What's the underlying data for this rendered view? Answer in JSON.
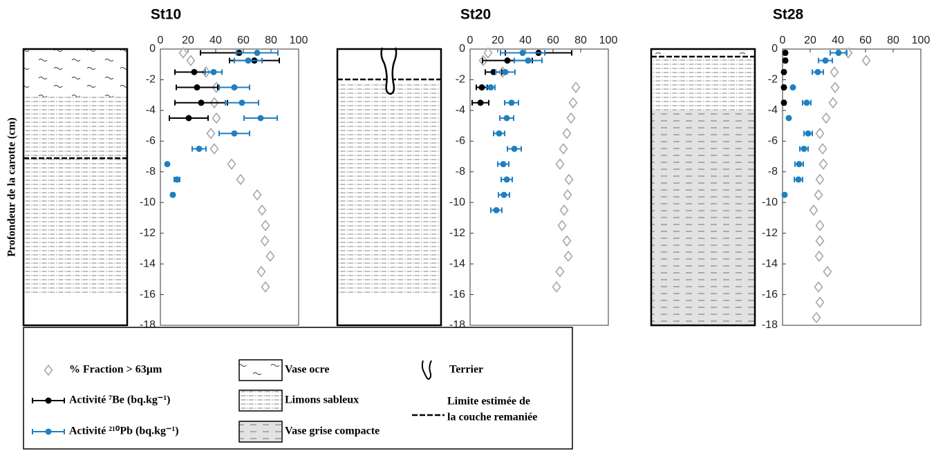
{
  "y_axis_label": "Profondeur de la carotte (cm)",
  "legend": {
    "series": [
      {
        "name": "% Fraction > 63µm",
        "color": "#a6a6a6",
        "marker": "diamond"
      },
      {
        "name": "Activité ⁷Be (bq.kg⁻¹)",
        "color": "#000000",
        "marker": "circle"
      },
      {
        "name": "Activité ²¹⁰Pb (bq.kg⁻¹)",
        "color": "#1f7fc1",
        "marker": "circle"
      }
    ],
    "layers": [
      "Vase ocre",
      "Limons sableux",
      "Vase grise compacte"
    ],
    "burrow": "Terrier",
    "limit": [
      "Limite estimée de",
      "la couche remaniée"
    ]
  },
  "chart_data": [
    {
      "type": "scatter",
      "title": "St10",
      "xlim": [
        0,
        100
      ],
      "xticks": [
        0,
        20,
        40,
        60,
        80,
        100
      ],
      "ylim": [
        -18,
        0
      ],
      "yticks": [
        0,
        -2,
        -4,
        -6,
        -8,
        -10,
        -12,
        -14,
        -16,
        -18
      ],
      "series": [
        {
          "x": [
            16.5,
            22,
            33,
            40.5,
            39,
            40.5,
            36.5,
            39,
            51.5,
            58,
            70,
            73.5,
            76,
            75.5,
            79.5,
            73,
            76
          ],
          "values": [
            -0.25,
            -0.75,
            -1.5,
            -2.5,
            -3.5,
            -4.5,
            -5.5,
            -6.5,
            -7.5,
            -8.5,
            -9.5,
            -10.5,
            -11.5,
            -12.5,
            -13.5,
            -14.5,
            -15.5
          ]
        },
        {
          "x": [
            57,
            68,
            24.5,
            26.5,
            29.5,
            20.5
          ],
          "xerr": [
            28,
            18,
            14,
            15,
            19,
            14
          ],
          "values": [
            -0.25,
            -0.75,
            -1.5,
            -2.5,
            -3.5,
            -4.5
          ]
        },
        {
          "x": [
            70,
            63.5,
            38.5,
            53.5,
            59,
            72.5,
            53.5,
            28,
            5,
            12,
            9
          ],
          "xerr": [
            15,
            10,
            6,
            11,
            12,
            12,
            11,
            5,
            0,
            2,
            1
          ],
          "values": [
            -0.25,
            -0.75,
            -1.5,
            -2.5,
            -3.5,
            -4.5,
            -5.5,
            -6.5,
            -7.5,
            -8.5,
            -9.5
          ]
        }
      ]
    },
    {
      "type": "scatter",
      "title": "St20",
      "xlim": [
        0,
        100
      ],
      "xticks": [
        0,
        20,
        40,
        60,
        80,
        100
      ],
      "ylim": [
        -18,
        0
      ],
      "yticks": [
        0,
        -2,
        -4,
        -6,
        -8,
        -10,
        -12,
        -14,
        -16,
        -18
      ],
      "series": [
        {
          "x": [
            13,
            9.5,
            23.5,
            76.5,
            74.5,
            73,
            70,
            67.5,
            65,
            71.5,
            70.5,
            68,
            66.5,
            70,
            71,
            65,
            62.5
          ],
          "values": [
            -0.25,
            -0.75,
            -1.5,
            -2.5,
            -3.5,
            -4.5,
            -5.5,
            -6.5,
            -7.5,
            -8.5,
            -9.5,
            -10.5,
            -11.5,
            -12.5,
            -13.5,
            -14.5,
            -15.5
          ]
        },
        {
          "x": [
            49.5,
            27,
            17,
            8.5,
            7.5
          ],
          "xerr": [
            24,
            18,
            6,
            4,
            6
          ],
          "values": [
            -0.25,
            -0.75,
            -1.5,
            -2.5,
            -3.5
          ]
        },
        {
          "x": [
            38,
            42,
            25.5,
            15,
            30,
            26.5,
            21,
            32,
            24,
            26.5,
            24.5,
            19
          ],
          "xerr": [
            16,
            10,
            7,
            3,
            5,
            5,
            4,
            5,
            4,
            4,
            4,
            4
          ],
          "values": [
            -0.25,
            -0.75,
            -1.5,
            -2.5,
            -3.5,
            -4.5,
            -5.5,
            -6.5,
            -7.5,
            -8.5,
            -9.5,
            -10.5
          ]
        }
      ]
    },
    {
      "type": "scatter",
      "title": "St28",
      "xlim": [
        0,
        100
      ],
      "xticks": [
        0,
        20,
        40,
        60,
        80,
        100
      ],
      "ylim": [
        -18,
        0
      ],
      "yticks": [
        0,
        -2,
        -4,
        -6,
        -8,
        -10,
        -12,
        -14,
        -16,
        -18
      ],
      "series": [
        {
          "x": [
            47.5,
            60.5,
            37.5,
            38,
            36.5,
            31.5,
            27,
            29,
            29.5,
            27,
            26,
            22.5,
            27,
            27,
            26.5,
            32.5,
            26,
            27,
            24.5
          ],
          "values": [
            -0.25,
            -0.75,
            -1.5,
            -2.5,
            -3.5,
            -4.5,
            -5.5,
            -6.5,
            -7.5,
            -8.5,
            -9.5,
            -10.5,
            -11.5,
            -12.5,
            -13.5,
            -14.5,
            -15.5,
            -16.5,
            -17.5
          ]
        },
        {
          "x": [
            2,
            2,
            1,
            1,
            1
          ],
          "xerr": [
            1,
            1,
            1,
            1,
            1
          ],
          "values": [
            -0.25,
            -0.75,
            -1.5,
            -2.5,
            -3.5
          ]
        },
        {
          "x": [
            40.5,
            31,
            25.5,
            7.5,
            17.5,
            4.5,
            18.5,
            15.5,
            12,
            11.5,
            1.5
          ],
          "xerr": [
            6,
            5,
            4,
            0,
            3,
            0,
            3,
            3,
            3,
            3,
            0
          ],
          "values": [
            -0.25,
            -0.75,
            -1.5,
            -2.5,
            -3.5,
            -4.5,
            -5.5,
            -6.5,
            -7.5,
            -8.5,
            -9.5
          ]
        }
      ]
    }
  ]
}
